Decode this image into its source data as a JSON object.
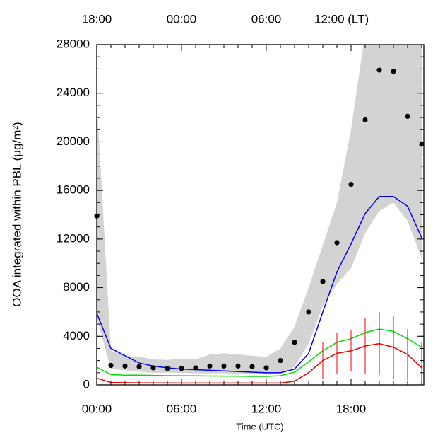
{
  "chart_data": {
    "type": "line",
    "y_label": "OOA integrated within PBL (μg/m²)",
    "x_label": "Time (UTC)",
    "x": [
      0,
      1,
      2,
      3,
      4,
      5,
      6,
      7,
      8,
      9,
      10,
      11,
      12,
      13,
      14,
      15,
      16,
      17,
      18,
      19,
      20,
      21,
      22,
      23
    ],
    "xlim": [
      0,
      23.15
    ],
    "xticks": [
      {
        "value": 0,
        "label": "00:00"
      },
      {
        "value": 6,
        "label": "06:00"
      },
      {
        "value": 12,
        "label": "12:00"
      },
      {
        "value": 18,
        "label": "18:00"
      }
    ],
    "x2ticks": [
      {
        "value": 0,
        "label": "18:00"
      },
      {
        "value": 6,
        "label": "00:00"
      },
      {
        "value": 12,
        "label": "06:00"
      },
      {
        "value": 18,
        "label": "12:00 (LT)"
      }
    ],
    "ylim": [
      0,
      28000
    ],
    "yticks": [
      0,
      4000,
      8000,
      12000,
      16000,
      20000,
      24000,
      28000
    ],
    "band": {
      "color": "#d3d3d3",
      "lower": [
        5500,
        1300,
        1200,
        1100,
        1000,
        1000,
        1000,
        950,
        950,
        950,
        900,
        900,
        850,
        900,
        1500,
        3400,
        6500,
        8300,
        9600,
        12500,
        14300,
        15000,
        13500,
        10400
      ],
      "upper": [
        23500,
        2800,
        2400,
        2300,
        2100,
        2050,
        2150,
        2100,
        2500,
        2600,
        2500,
        2400,
        2300,
        3000,
        4800,
        8000,
        11500,
        15000,
        21000,
        29000,
        29000,
        29000,
        29000,
        29000
      ]
    },
    "series": [
      {
        "color": "#0000ee",
        "values": [
          5900,
          3000,
          2400,
          1800,
          1550,
          1400,
          1300,
          1250,
          1200,
          1150,
          1100,
          1050,
          1000,
          1000,
          1300,
          2600,
          6000,
          9300,
          11600,
          14100,
          15500,
          15500,
          14700,
          12100
        ]
      },
      {
        "color": "#00dd00",
        "values": [
          1450,
          850,
          800,
          800,
          780,
          760,
          750,
          740,
          730,
          720,
          710,
          700,
          700,
          750,
          1050,
          1900,
          2800,
          3500,
          3800,
          4300,
          4600,
          4400,
          3800,
          3100
        ]
      },
      {
        "color": "#ee0000",
        "values": [
          550,
          200,
          180,
          170,
          160,
          160,
          150,
          150,
          150,
          150,
          150,
          150,
          150,
          150,
          300,
          1000,
          2000,
          2600,
          2800,
          3200,
          3400,
          3100,
          2500,
          1400
        ],
        "errors": [
          null,
          null,
          null,
          null,
          null,
          null,
          null,
          null,
          null,
          null,
          null,
          null,
          null,
          null,
          null,
          null,
          1500,
          1700,
          1700,
          2300,
          2600,
          2600,
          2100,
          2100
        ]
      }
    ],
    "points": {
      "color": "#000000",
      "values": [
        13900,
        1600,
        1550,
        1500,
        1400,
        1350,
        1350,
        1400,
        1550,
        1550,
        1550,
        1500,
        1400,
        2000,
        3500,
        6000,
        8500,
        11700,
        16500,
        21800,
        25900,
        25800,
        22100,
        19800
      ]
    }
  }
}
